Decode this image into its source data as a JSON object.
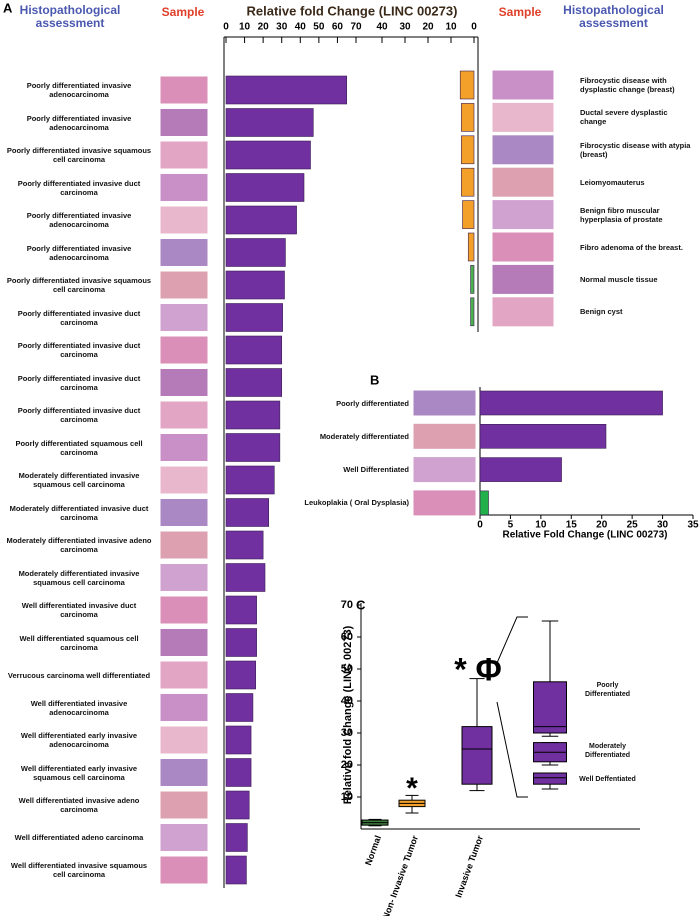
{
  "panel_labels": [
    "A",
    "B",
    "C"
  ],
  "chart_data": [
    {
      "type": "bar",
      "title": "Relative fold Change (LINC 00273)",
      "column_headers": [
        "Histopathological assessment",
        "Sample"
      ],
      "categories": [
        "Poorly differentiated invasive adenocarcinoma",
        "Poorly differentiated invasive adenocarcinoma",
        "Poorly differentiated invasive squamous cell carcinoma",
        "Poorly differentiated invasive duct carcinoma",
        "Poorly differentiated invasive adenocarcinoma",
        "Poorly differentiated invasive adenocarcinoma",
        "Poorly differentiated invasive squamous cell carcinoma",
        "Poorly differentiated invasive duct carcinoma",
        "Poorly differentiated invasive duct carcinoma",
        "Poorly differentiated invasive duct carcinoma",
        "Poorly differentiated invasive duct carcinoma",
        "Poorly differentiated squamous cell carcinoma",
        "Moderately differentiated invasive squamous cell carcinoma",
        "Moderately differentiated invasive duct carcinoma",
        "Moderately differentiated invasive adeno carcinoma",
        "Moderately differentiated invasive squamous cell carcinoma",
        "Well differentiated invasive duct carcinoma",
        "Well differentiated squamous cell carcinoma",
        "Verrucous carcinoma well differentiated",
        "Well differentiated invasive adenocarcinoma",
        "Well differentiated early invasive adenocarcinoma",
        "Well differentiated early invasive squamous cell carcinoma",
        "Well differentiated invasive adeno carcinoma",
        "Well differentiated adeno carcinoma",
        "Well differentiated invasive squamous cell carcinoma"
      ],
      "values": [
        65,
        47,
        45.5,
        42,
        38,
        32,
        31.5,
        30.5,
        30,
        30,
        29,
        29,
        26,
        23,
        20,
        21,
        16.5,
        16.5,
        16,
        14.5,
        13.5,
        13.5,
        12.5,
        11.5,
        11
      ],
      "color": "#7030a0",
      "xlim": [
        0,
        70
      ],
      "xticks": [
        0,
        10,
        20,
        30,
        40,
        50,
        60,
        70
      ]
    },
    {
      "type": "bar",
      "column_headers": [
        "Sample",
        "Histopathological assessment"
      ],
      "categories": [
        "Fibrocystic disease with dysplastic change (breast)",
        "Ductal severe dysplastic change",
        "Fibrocystic disease with atypia (breast)",
        "Leiomyomauterus",
        "Benign fibro muscular hyperplasia of prostate",
        "Fibro adenoma of the breast.",
        "Normal muscle tissue",
        "Benign cyst"
      ],
      "values": [
        6,
        5.5,
        5.5,
        5.5,
        5,
        2.5,
        1.5,
        1.5
      ],
      "colors": [
        "#f2a02a",
        "#f2a02a",
        "#f2a02a",
        "#f2a02a",
        "#f2a02a",
        "#f2a02a",
        "#4caf50",
        "#4caf50"
      ],
      "xlim": [
        0,
        40
      ],
      "xticks": [
        40,
        30,
        20,
        10,
        0
      ],
      "x_reversed": true
    },
    {
      "type": "bar",
      "categories": [
        "Poorly differentiated",
        "Moderately differentiated",
        "Well Differentiated",
        "Leukoplakia ( Oral Dysplasia)"
      ],
      "values": [
        30,
        20.7,
        13.4,
        1.4
      ],
      "colors": [
        "#7030a0",
        "#7030a0",
        "#7030a0",
        "#22b04a"
      ],
      "xlabel": "Relative Fold Change (LINC 00273)",
      "xlim": [
        0,
        35
      ],
      "xticks": [
        0,
        5,
        10,
        15,
        20,
        25,
        30,
        35
      ]
    },
    {
      "type": "box",
      "ylabel": "Relative fold Change (LINC 00273)",
      "categories": [
        "Normal",
        "Non- Invasive Tumor",
        "Invasive Tumor"
      ],
      "low": [
        1,
        5,
        12
      ],
      "q1": [
        1.2,
        7,
        14
      ],
      "median": [
        2,
        8,
        25
      ],
      "q3": [
        2.8,
        9,
        32
      ],
      "high": [
        3,
        10.5,
        47
      ],
      "colors": [
        "#3d7a3d",
        "#f2a02a",
        "#7030a0"
      ],
      "annotations": [
        "*",
        "* Φ"
      ],
      "ylim": [
        0,
        70
      ],
      "yticks": [
        10,
        20,
        30,
        40,
        50,
        60,
        70
      ],
      "inset": {
        "categories": [
          "Poorly Differentiated",
          "Moderately Differentiated",
          "Well Deffentiated"
        ],
        "low": [
          29,
          20,
          12.5
        ],
        "q1": [
          30,
          21,
          14
        ],
        "median": [
          32,
          24,
          16
        ],
        "q3": [
          46,
          27,
          17.5
        ],
        "high": [
          65,
          27,
          17.5
        ],
        "color": "#7030a0"
      }
    }
  ]
}
